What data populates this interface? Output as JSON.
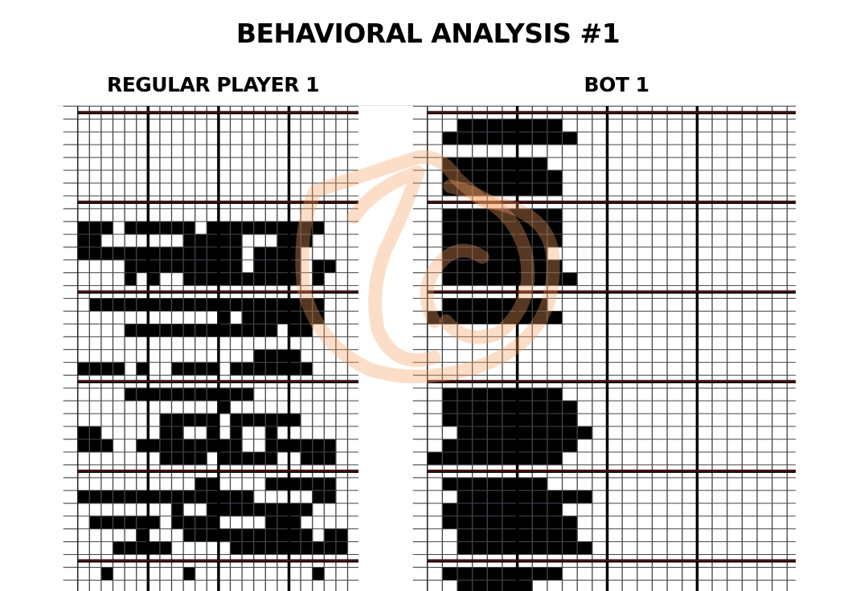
{
  "title": "BEHAVIORAL ANALYSIS #1",
  "panels": {
    "left": {
      "label": "REGULAR PLAYER 1",
      "columns": 23,
      "rows": [
        "00000000000000000000000",
        "00000000000000000000000",
        "00000000000000000000000",
        "00000000000000000000000",
        "00000000000000000000000",
        "00000000000000000000000",
        "00000000000000000000000",
        "00000000000000000000000",
        "00000000000000000000000",
        "11101111110111111111100",
        "11000000011111000111000",
        "11111111111111011110000",
        "00001111111111011110110",
        "00001010011111111110100",
        "00000000000000000000000",
        "01111111111111111111100",
        "00000000000010111111100",
        "00001111111111111011000",
        "00000000000000000000000",
        "00000000000000011110000",
        "11110100111101111111000",
        "00000000000000000000000",
        "00001111111111100000000",
        "00000000000010000000000",
        "00000001111101111110000",
        "11000001100101001000000",
        "11100111111111001111110",
        "00000001111011111001110",
        "00000000000000000000000",
        "00000000001100001111110",
        "11111111111111100000110",
        "00000000100111111111000",
        "01111110111100001110000",
        "00000100011111111111011",
        "00011111000001111111111",
        "00000000000000000000000",
        "00100000010000000000100",
        "00000000000000000000000"
      ]
    },
    "right": {
      "label": "BOT 1",
      "columns": 24,
      "rows": [
        "000000000000000000000000",
        "001111111000000000000000",
        "011111111100000000000000",
        "000000000000000000000000",
        "011111110000000000000000",
        "011111111000000000000000",
        "011111111000000000000000",
        "000000000000000000000000",
        "011111111000000000000000",
        "011111111000000000000000",
        "011111111000000000000000",
        "011111110000000000000000",
        "011111111000000000000000",
        "011111111100000000000000",
        "000000000000000000000000",
        "011111110000000000000000",
        "111111111000000000000000",
        "000000000000000000000000",
        "000000000000000000000000",
        "000000000000000000000000",
        "000000000000000000000000",
        "000000000000000000000000",
        "011111111000000000000000",
        "011111111100000000000000",
        "011111111100000000000000",
        "001111111110000000000000",
        "011111111100000000000000",
        "111111111000000000000000",
        "000000000000000000000000",
        "011111110000000000000000",
        "001111111110000000000000",
        "011111111000000000000000",
        "011111111100000000000000",
        "001111111100000000000000",
        "001111111110000000000000",
        "000000000000000000000000",
        "011111111000000000000000",
        "001111100000000000000000"
      ]
    }
  },
  "colors": {
    "filled": "#000000",
    "filled_gridline": "#1a1a70",
    "gridline": "#444444",
    "major_line": "#000000",
    "major_line_accent": "#cc2222",
    "watermark": "#f5a060"
  },
  "watermark_icon": "flame-drop-logo"
}
